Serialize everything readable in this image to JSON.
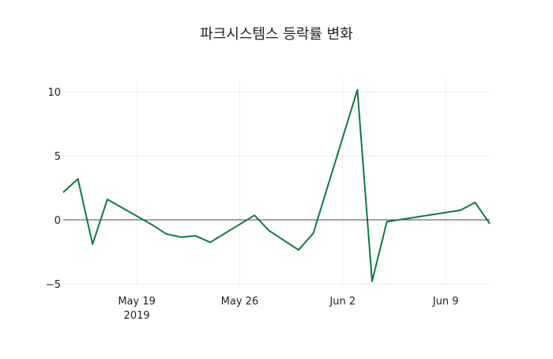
{
  "chart_data": {
    "type": "line",
    "title": "파크시스템스 등락률 변화",
    "xlabel": "",
    "ylabel": "",
    "x": [
      "2019-05-14",
      "2019-05-15",
      "2019-05-16",
      "2019-05-17",
      "2019-05-20",
      "2019-05-21",
      "2019-05-22",
      "2019-05-23",
      "2019-05-24",
      "2019-05-27",
      "2019-05-28",
      "2019-05-30",
      "2019-05-31",
      "2019-06-03",
      "2019-06-04",
      "2019-06-05",
      "2019-06-10",
      "2019-06-11",
      "2019-06-12"
    ],
    "series": [
      {
        "name": "등락률",
        "color": "#0e7a3f",
        "values": [
          2.15,
          3.2,
          -1.9,
          1.6,
          -0.35,
          -1.1,
          -1.35,
          -1.25,
          -1.75,
          0.35,
          -0.85,
          -2.35,
          -1.05,
          10.15,
          -4.8,
          -0.15,
          0.75,
          1.35,
          -0.3
        ]
      }
    ],
    "xlim": [
      "2019-05-14",
      "2019-06-12"
    ],
    "ylim": [
      -5.5,
      11
    ],
    "xticks": [
      {
        "date": "2019-05-19",
        "label": "May 19",
        "sublabel": "2019"
      },
      {
        "date": "2019-05-26",
        "label": "May 26"
      },
      {
        "date": "2019-06-02",
        "label": "Jun 2"
      },
      {
        "date": "2019-06-09",
        "label": "Jun 9"
      }
    ],
    "yticks": [
      {
        "value": -5,
        "label": "−5"
      },
      {
        "value": 0,
        "label": "0"
      },
      {
        "value": 5,
        "label": "5"
      },
      {
        "value": 10,
        "label": "10"
      }
    ],
    "grid": true,
    "legend": "none"
  }
}
